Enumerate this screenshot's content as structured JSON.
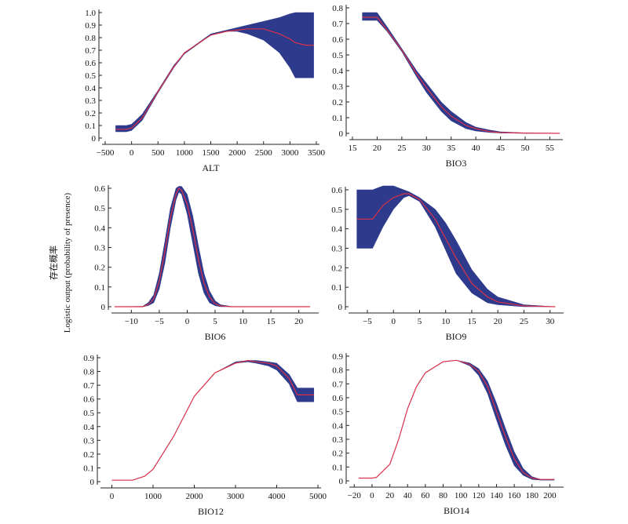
{
  "y_label_cn": "存在概率",
  "y_label_en": "Logistic output (probability of presence)",
  "chart_data": [
    {
      "type": "area",
      "xlabel": "ALT",
      "xlim": [
        -500,
        3500
      ],
      "ylim": [
        0,
        1.0
      ],
      "xticks": [
        -500,
        0,
        500,
        1000,
        1500,
        2000,
        2500,
        3000,
        3500
      ],
      "yticks": [
        0,
        0.1,
        0.2,
        0.3,
        0.4,
        0.5,
        0.6,
        0.7,
        0.8,
        0.9,
        1.0
      ],
      "x": [
        -300,
        -100,
        0,
        200,
        500,
        800,
        1000,
        1500,
        1800,
        2000,
        2200,
        2500,
        2800,
        3000,
        3100,
        3200,
        3300,
        3450
      ],
      "mean": [
        0.07,
        0.07,
        0.08,
        0.16,
        0.37,
        0.57,
        0.68,
        0.82,
        0.85,
        0.86,
        0.87,
        0.87,
        0.83,
        0.79,
        0.76,
        0.75,
        0.74,
        0.74
      ],
      "upper": [
        0.1,
        0.1,
        0.11,
        0.19,
        0.38,
        0.58,
        0.68,
        0.83,
        0.86,
        0.88,
        0.9,
        0.93,
        0.96,
        0.99,
        1.0,
        1.0,
        1.0,
        1.0
      ],
      "lower": [
        0.05,
        0.05,
        0.06,
        0.14,
        0.36,
        0.56,
        0.67,
        0.82,
        0.85,
        0.85,
        0.83,
        0.78,
        0.68,
        0.56,
        0.48,
        0.48,
        0.48,
        0.48
      ],
      "band_color": "#2e3a8c",
      "line_color": "#d9304a"
    },
    {
      "type": "area",
      "xlabel": "BIO3",
      "xlim": [
        15,
        57
      ],
      "ylim": [
        0,
        0.8
      ],
      "xticks": [
        15,
        20,
        25,
        30,
        35,
        40,
        45,
        50,
        55
      ],
      "yticks": [
        0,
        0.1,
        0.2,
        0.3,
        0.4,
        0.5,
        0.6,
        0.7,
        0.8
      ],
      "x": [
        17,
        18,
        20,
        22,
        25,
        28,
        30,
        33,
        35,
        38,
        40,
        43,
        45,
        50,
        57
      ],
      "mean": [
        0.74,
        0.74,
        0.74,
        0.66,
        0.53,
        0.38,
        0.29,
        0.17,
        0.11,
        0.05,
        0.03,
        0.01,
        0.005,
        0.002,
        0.0
      ],
      "upper": [
        0.77,
        0.77,
        0.77,
        0.68,
        0.54,
        0.4,
        0.32,
        0.2,
        0.14,
        0.07,
        0.04,
        0.02,
        0.01,
        0.003,
        0.0
      ],
      "lower": [
        0.72,
        0.72,
        0.72,
        0.65,
        0.52,
        0.36,
        0.26,
        0.14,
        0.08,
        0.03,
        0.015,
        0.005,
        0.002,
        0.0,
        0.0
      ],
      "band_color": "#2e3a8c",
      "line_color": "#d9304a"
    },
    {
      "type": "area",
      "xlabel": "BIO6",
      "xlim": [
        -13,
        23
      ],
      "ylim": [
        0,
        0.6
      ],
      "xticks": [
        -10,
        -5,
        0,
        5,
        10,
        15,
        20
      ],
      "yticks": [
        0,
        0.1,
        0.2,
        0.3,
        0.4,
        0.5,
        0.6
      ],
      "x": [
        -13,
        -8,
        -7,
        -6,
        -5,
        -4,
        -3,
        -2,
        -1.5,
        -1,
        0,
        1,
        2,
        3,
        4,
        5,
        6,
        8,
        22
      ],
      "mean": [
        0.0,
        0.0,
        0.01,
        0.04,
        0.13,
        0.28,
        0.45,
        0.57,
        0.6,
        0.59,
        0.52,
        0.39,
        0.24,
        0.12,
        0.05,
        0.015,
        0.004,
        0.0,
        0.0
      ],
      "upper": [
        0.0,
        0.002,
        0.02,
        0.06,
        0.17,
        0.33,
        0.5,
        0.6,
        0.61,
        0.61,
        0.57,
        0.46,
        0.31,
        0.17,
        0.08,
        0.03,
        0.01,
        0.001,
        0.0
      ],
      "lower": [
        0.0,
        0.0,
        0.005,
        0.02,
        0.09,
        0.22,
        0.4,
        0.54,
        0.58,
        0.57,
        0.47,
        0.32,
        0.17,
        0.07,
        0.02,
        0.005,
        0.0,
        0.0,
        0.0
      ],
      "band_color": "#2e3a8c",
      "line_color": "#d9304a"
    },
    {
      "type": "area",
      "xlabel": "BIO9",
      "xlim": [
        -8,
        32
      ],
      "ylim": [
        0,
        0.6
      ],
      "xticks": [
        -5,
        0,
        5,
        10,
        15,
        20,
        25,
        30
      ],
      "yticks": [
        0,
        0.1,
        0.2,
        0.3,
        0.4,
        0.5,
        0.6
      ],
      "x": [
        -7,
        -5,
        -4,
        -2,
        0,
        2,
        3,
        5,
        8,
        10,
        12,
        15,
        18,
        20,
        25,
        31
      ],
      "mean": [
        0.45,
        0.45,
        0.45,
        0.52,
        0.56,
        0.58,
        0.58,
        0.55,
        0.45,
        0.35,
        0.25,
        0.12,
        0.05,
        0.025,
        0.004,
        0.0
      ],
      "upper": [
        0.6,
        0.6,
        0.6,
        0.62,
        0.62,
        0.6,
        0.59,
        0.56,
        0.5,
        0.43,
        0.34,
        0.19,
        0.09,
        0.05,
        0.01,
        0.0
      ],
      "lower": [
        0.3,
        0.3,
        0.3,
        0.41,
        0.5,
        0.56,
        0.57,
        0.54,
        0.41,
        0.29,
        0.17,
        0.07,
        0.02,
        0.01,
        0.0,
        0.0
      ],
      "band_color": "#2e3a8c",
      "line_color": "#d9304a"
    },
    {
      "type": "area",
      "xlabel": "BIO12",
      "xlim": [
        -200,
        5000
      ],
      "ylim": [
        0,
        0.9
      ],
      "xticks": [
        0,
        1000,
        2000,
        3000,
        4000,
        5000
      ],
      "yticks": [
        0,
        0.1,
        0.2,
        0.3,
        0.4,
        0.5,
        0.6,
        0.7,
        0.8,
        0.9
      ],
      "x": [
        0,
        500,
        800,
        1000,
        1500,
        2000,
        2500,
        3000,
        3300,
        3500,
        3800,
        4000,
        4300,
        4500,
        4700,
        4900
      ],
      "mean": [
        0.01,
        0.01,
        0.04,
        0.09,
        0.33,
        0.62,
        0.79,
        0.86,
        0.88,
        0.87,
        0.86,
        0.84,
        0.75,
        0.63,
        0.63,
        0.63
      ],
      "upper": [
        0.01,
        0.01,
        0.04,
        0.09,
        0.33,
        0.62,
        0.79,
        0.87,
        0.88,
        0.88,
        0.87,
        0.86,
        0.78,
        0.68,
        0.68,
        0.68
      ],
      "lower": [
        0.01,
        0.01,
        0.04,
        0.09,
        0.33,
        0.62,
        0.79,
        0.86,
        0.87,
        0.86,
        0.84,
        0.81,
        0.71,
        0.58,
        0.58,
        0.58
      ],
      "band_color": "#2e3a8c",
      "line_color": "#d9304a"
    },
    {
      "type": "area",
      "xlabel": "BIO14",
      "xlim": [
        -22,
        212
      ],
      "ylim": [
        0,
        0.9
      ],
      "xticks": [
        -20,
        0,
        20,
        40,
        60,
        80,
        100,
        120,
        140,
        160,
        180,
        200
      ],
      "yticks": [
        0,
        0.1,
        0.2,
        0.3,
        0.4,
        0.5,
        0.6,
        0.7,
        0.8,
        0.9
      ],
      "x": [
        -15,
        0,
        5,
        20,
        30,
        40,
        50,
        60,
        80,
        95,
        110,
        120,
        130,
        140,
        150,
        160,
        170,
        180,
        190,
        205
      ],
      "mean": [
        0.02,
        0.02,
        0.025,
        0.12,
        0.3,
        0.52,
        0.68,
        0.78,
        0.86,
        0.87,
        0.84,
        0.79,
        0.68,
        0.5,
        0.32,
        0.16,
        0.06,
        0.02,
        0.01,
        0.01
      ],
      "upper": [
        0.02,
        0.02,
        0.025,
        0.12,
        0.3,
        0.52,
        0.68,
        0.78,
        0.86,
        0.87,
        0.85,
        0.81,
        0.72,
        0.56,
        0.38,
        0.21,
        0.09,
        0.03,
        0.01,
        0.01
      ],
      "lower": [
        0.02,
        0.02,
        0.025,
        0.12,
        0.3,
        0.52,
        0.68,
        0.78,
        0.86,
        0.87,
        0.83,
        0.76,
        0.63,
        0.44,
        0.26,
        0.11,
        0.04,
        0.01,
        0.005,
        0.005
      ],
      "band_color": "#2e3a8c",
      "line_color": "#d9304a"
    }
  ]
}
